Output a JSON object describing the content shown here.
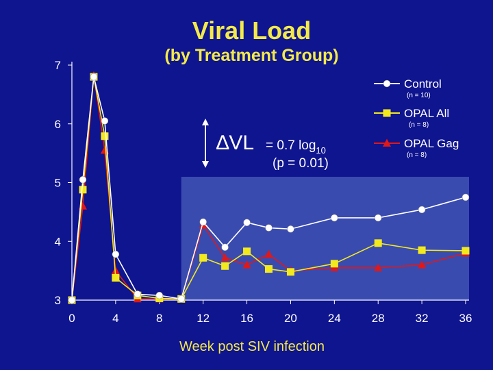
{
  "chart_data": {
    "type": "line",
    "title": "Viral Load",
    "subtitle": "(by Treatment Group)",
    "xlabel": "Week post SIV infection",
    "ylabel": "",
    "xlim": [
      0,
      36
    ],
    "ylim": [
      3,
      7
    ],
    "x_ticks": [
      0,
      4,
      8,
      12,
      16,
      20,
      24,
      28,
      32,
      36
    ],
    "y_ticks": [
      3,
      4,
      5,
      6,
      7
    ],
    "highlight_from_week": 10,
    "series": [
      {
        "name": "Control",
        "n_label": "(n = 10)",
        "marker": "circle",
        "color": "#ffffff",
        "x": [
          0,
          1,
          2,
          3,
          4,
          6,
          8,
          10,
          12,
          14,
          16,
          18,
          20,
          24,
          28,
          32,
          36
        ],
        "y": [
          3.0,
          5.05,
          6.8,
          6.05,
          3.78,
          3.1,
          3.08,
          3.02,
          4.33,
          3.9,
          4.32,
          4.23,
          4.21,
          4.4,
          4.4,
          4.54,
          4.75
        ]
      },
      {
        "name": "OPAL All",
        "n_label": "(n = 8)",
        "marker": "square",
        "color": "#f3ea1e",
        "x": [
          0,
          1,
          2,
          3,
          4,
          6,
          8,
          10,
          12,
          14,
          16,
          18,
          20,
          24,
          28,
          32,
          36
        ],
        "y": [
          3.0,
          4.88,
          6.8,
          5.79,
          3.38,
          3.08,
          3.03,
          3.02,
          3.72,
          3.58,
          3.83,
          3.53,
          3.48,
          3.62,
          3.97,
          3.85,
          3.84
        ]
      },
      {
        "name": "OPAL Gag",
        "n_label": "(n = 8)",
        "marker": "triangle",
        "color": "#e01818",
        "x": [
          0,
          1,
          2,
          3,
          4,
          6,
          8,
          10,
          12,
          14,
          16,
          18,
          20,
          24,
          28,
          32,
          36
        ],
        "y": [
          3.0,
          4.6,
          6.82,
          5.55,
          3.5,
          3.02,
          3.02,
          3.02,
          4.28,
          3.72,
          3.6,
          3.78,
          3.5,
          3.55,
          3.55,
          3.6,
          3.8
        ]
      }
    ],
    "annotation": {
      "delta_symbol": "∆",
      "delta_label": "VL",
      "value_text": "= 0.7 log",
      "value_subscript": "10",
      "p_text": "(p = 0.01)"
    }
  }
}
